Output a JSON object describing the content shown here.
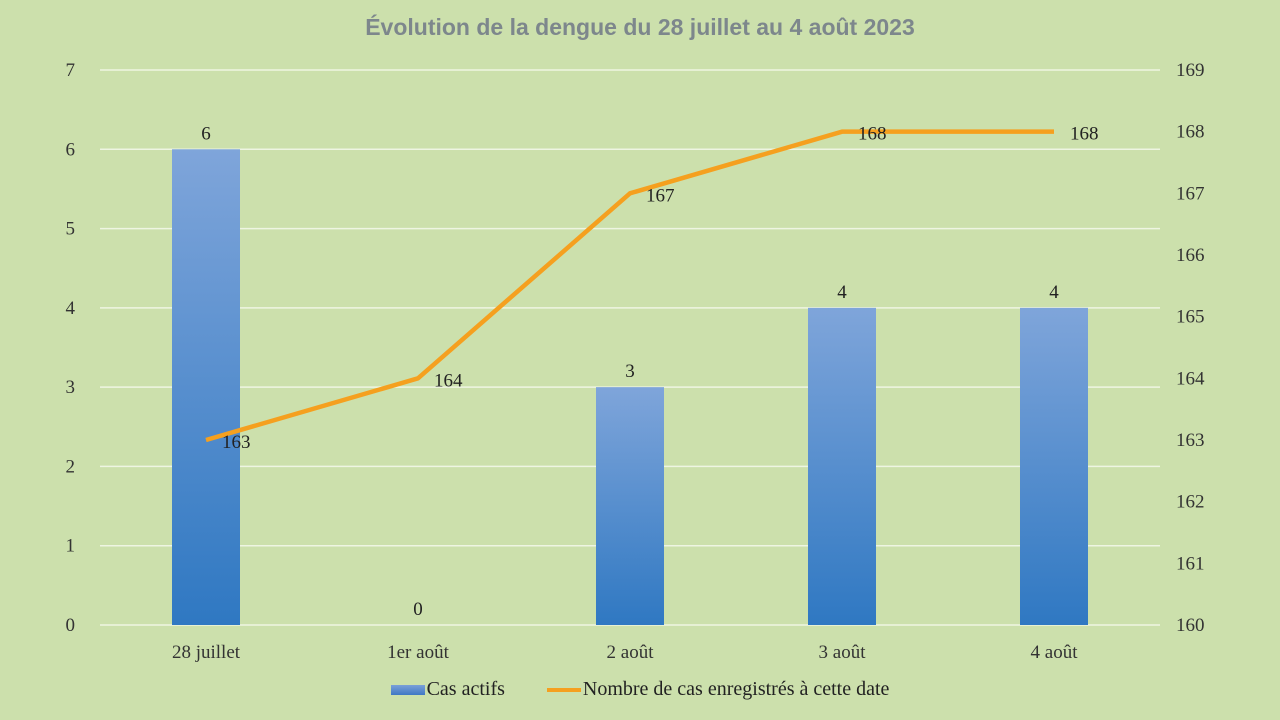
{
  "chart_data": {
    "type": "bar+line",
    "title": "Évolution de la dengue du 28 juillet au 4 août 2023",
    "categories": [
      "28 juillet",
      "1er août",
      "2 août",
      "3 août",
      "4 août"
    ],
    "series": [
      {
        "name": "Cas actifs",
        "type": "bar",
        "axis": "left",
        "values": [
          6,
          0,
          3,
          4,
          4
        ],
        "color": "#4f84cc"
      },
      {
        "name": "Nombre de cas enregistrés à cette date",
        "type": "line",
        "axis": "right",
        "values": [
          163,
          164,
          167,
          168,
          168
        ],
        "color": "#f5a01f"
      }
    ],
    "y_left": {
      "min": 0,
      "max": 7,
      "ticks": [
        "0",
        "1",
        "2",
        "3",
        "4",
        "5",
        "6",
        "7"
      ]
    },
    "y_right": {
      "min": 160,
      "max": 169,
      "ticks": [
        "160",
        "161",
        "162",
        "163",
        "164",
        "165",
        "166",
        "167",
        "168",
        "169"
      ]
    },
    "grid": true,
    "legend": "bottom"
  }
}
